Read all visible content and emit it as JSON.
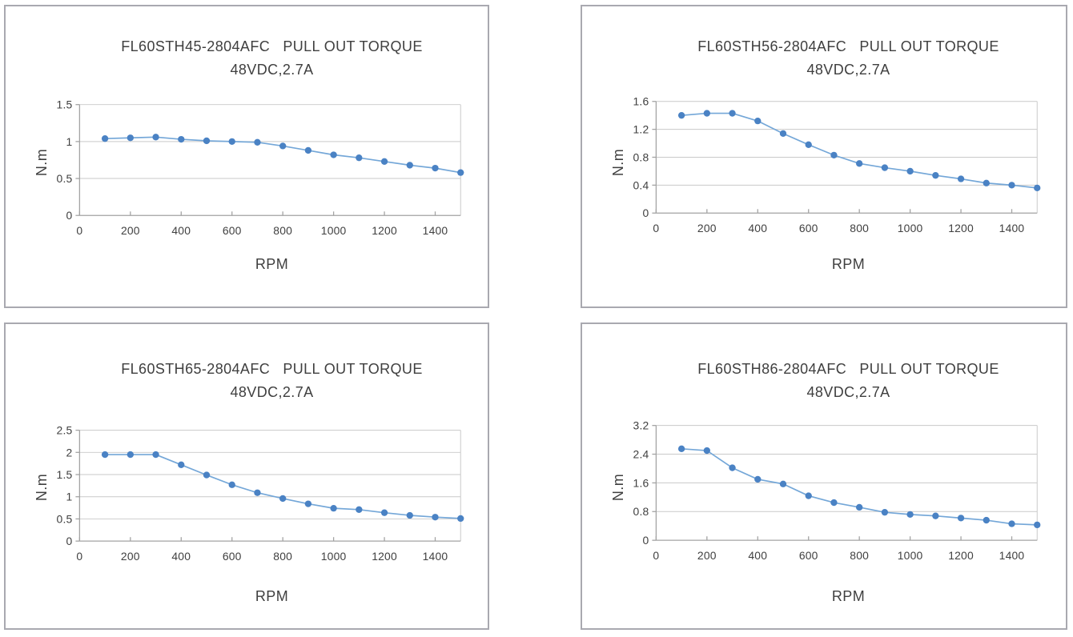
{
  "style": {
    "line_color": "#74a7d8",
    "marker_color": "#4a82c4",
    "grid_color": "#c9c9c9",
    "axis_color": "#a3a3a3",
    "text_color": "#404040",
    "panel_border_color": "#a9a9b0",
    "background": "#ffffff"
  },
  "chart_data": [
    {
      "type": "line",
      "title": "FL60STH45-2804AFC   PULL OUT TORQUE",
      "subtitle": "48VDC,2.7A",
      "xlabel": "RPM",
      "ylabel": "N.m",
      "legend": "none",
      "grid": true,
      "marker": "circle",
      "x": [
        100,
        200,
        300,
        400,
        500,
        600,
        700,
        800,
        900,
        1000,
        1100,
        1200,
        1300,
        1400,
        1500
      ],
      "values": [
        1.04,
        1.05,
        1.06,
        1.03,
        1.01,
        1.0,
        0.99,
        0.94,
        0.88,
        0.82,
        0.78,
        0.73,
        0.68,
        0.64,
        0.58
      ],
      "xlim": [
        0,
        1500
      ],
      "ylim": [
        0,
        1.5
      ],
      "xticks": [
        0,
        200,
        400,
        600,
        800,
        1000,
        1200,
        1400
      ],
      "yticks": [
        0,
        0.5,
        1,
        1.5
      ],
      "ytick_labels": [
        "0",
        "0.5",
        "1",
        "1.5"
      ]
    },
    {
      "type": "line",
      "title": "FL60STH56-2804AFC   PULL OUT TORQUE",
      "subtitle": "48VDC,2.7A",
      "xlabel": "RPM",
      "ylabel": "N.m",
      "legend": "none",
      "grid": true,
      "marker": "circle",
      "x": [
        100,
        200,
        300,
        400,
        500,
        600,
        700,
        800,
        900,
        1000,
        1100,
        1200,
        1300,
        1400,
        1500
      ],
      "values": [
        1.4,
        1.43,
        1.43,
        1.32,
        1.14,
        0.98,
        0.83,
        0.71,
        0.65,
        0.6,
        0.54,
        0.49,
        0.43,
        0.4,
        0.36
      ],
      "xlim": [
        0,
        1500
      ],
      "ylim": [
        0,
        1.6
      ],
      "xticks": [
        0,
        200,
        400,
        600,
        800,
        1000,
        1200,
        1400
      ],
      "yticks": [
        0,
        0.4,
        0.8,
        1.2,
        1.6
      ],
      "ytick_labels": [
        "0",
        "0.4",
        "0.8",
        "1.2",
        "1.6"
      ]
    },
    {
      "type": "line",
      "title": "FL60STH65-2804AFC   PULL OUT TORQUE",
      "subtitle": "48VDC,2.7A",
      "xlabel": "RPM",
      "ylabel": "N.m",
      "legend": "none",
      "grid": true,
      "marker": "circle",
      "x": [
        100,
        200,
        300,
        400,
        500,
        600,
        700,
        800,
        900,
        1000,
        1100,
        1200,
        1300,
        1400,
        1500
      ],
      "values": [
        1.95,
        1.95,
        1.95,
        1.72,
        1.49,
        1.27,
        1.09,
        0.96,
        0.84,
        0.74,
        0.71,
        0.64,
        0.58,
        0.54,
        0.51
      ],
      "xlim": [
        0,
        1500
      ],
      "ylim": [
        0,
        2.5
      ],
      "xticks": [
        0,
        200,
        400,
        600,
        800,
        1000,
        1200,
        1400
      ],
      "yticks": [
        0,
        0.5,
        1,
        1.5,
        2,
        2.5
      ],
      "ytick_labels": [
        "0",
        "0.5",
        "1",
        "1.5",
        "2",
        "2.5"
      ]
    },
    {
      "type": "line",
      "title": "FL60STH86-2804AFC   PULL OUT TORQUE",
      "subtitle": "48VDC,2.7A",
      "xlabel": "RPM",
      "ylabel": "N.m",
      "legend": "none",
      "grid": true,
      "marker": "circle",
      "x": [
        100,
        200,
        300,
        400,
        500,
        600,
        700,
        800,
        900,
        1000,
        1100,
        1200,
        1300,
        1400,
        1500
      ],
      "values": [
        2.55,
        2.5,
        2.02,
        1.7,
        1.57,
        1.24,
        1.05,
        0.92,
        0.78,
        0.72,
        0.68,
        0.62,
        0.56,
        0.46,
        0.43
      ],
      "xlim": [
        0,
        1500
      ],
      "ylim": [
        0,
        3.2
      ],
      "xticks": [
        0,
        200,
        400,
        600,
        800,
        1000,
        1200,
        1400
      ],
      "yticks": [
        0,
        0.8,
        1.6,
        2.4,
        3.2
      ],
      "ytick_labels": [
        "0",
        "0.8",
        "1.6",
        "2.4",
        "3.2"
      ]
    }
  ]
}
